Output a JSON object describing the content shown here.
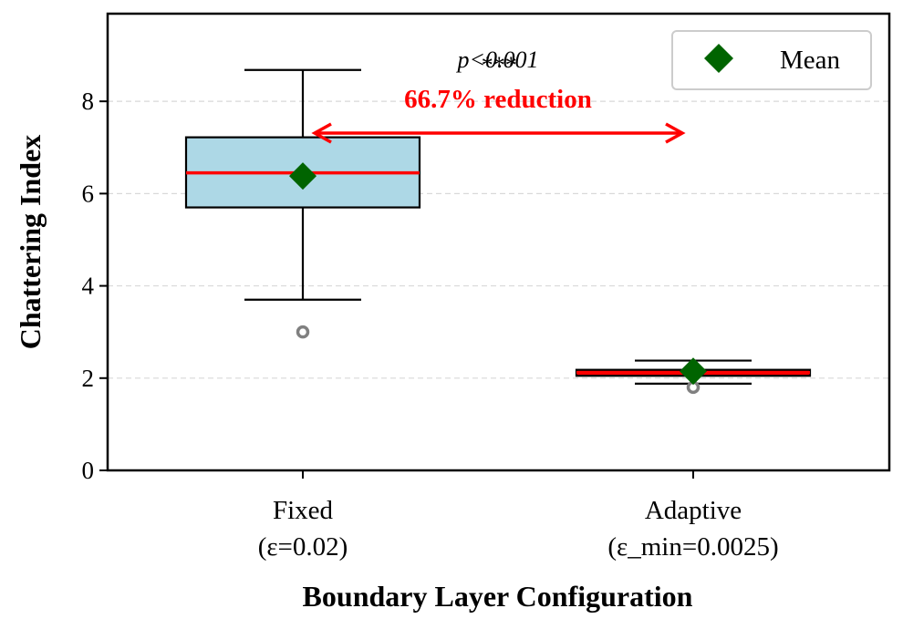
{
  "chart_data": {
    "type": "box",
    "xlabel": "Boundary Layer Configuration",
    "ylabel": "Chattering Index",
    "ylim": [
      0,
      9.9
    ],
    "yticks": [
      0,
      2,
      4,
      6,
      8
    ],
    "grid": "y-dashed",
    "legend": {
      "position": "top-right",
      "label": "Mean"
    },
    "annotations": {
      "reduction": "66.7% reduction",
      "pvalue": "p<0.001",
      "stars": "***"
    },
    "groups": [
      {
        "label_line1": "Fixed",
        "label_line2": "(ε=0.02)",
        "whisker_low": 3.7,
        "q1": 5.7,
        "median": 6.45,
        "q3": 7.22,
        "whisker_high": 8.68,
        "mean": 6.38,
        "outliers": [
          3.0
        ],
        "fill": "#add8e6"
      },
      {
        "label_line1": "Adaptive",
        "label_line2": "(ε_min=0.0025)",
        "whisker_low": 1.88,
        "q1": 2.05,
        "median": 2.12,
        "q3": 2.18,
        "whisker_high": 2.38,
        "mean": 2.15,
        "outliers": [
          1.8
        ],
        "fill": "#ff0000"
      }
    ],
    "colors": {
      "median": "#ff0000",
      "mean": "#006400",
      "outlier": "#808080",
      "arrow": "#ff0000"
    }
  }
}
